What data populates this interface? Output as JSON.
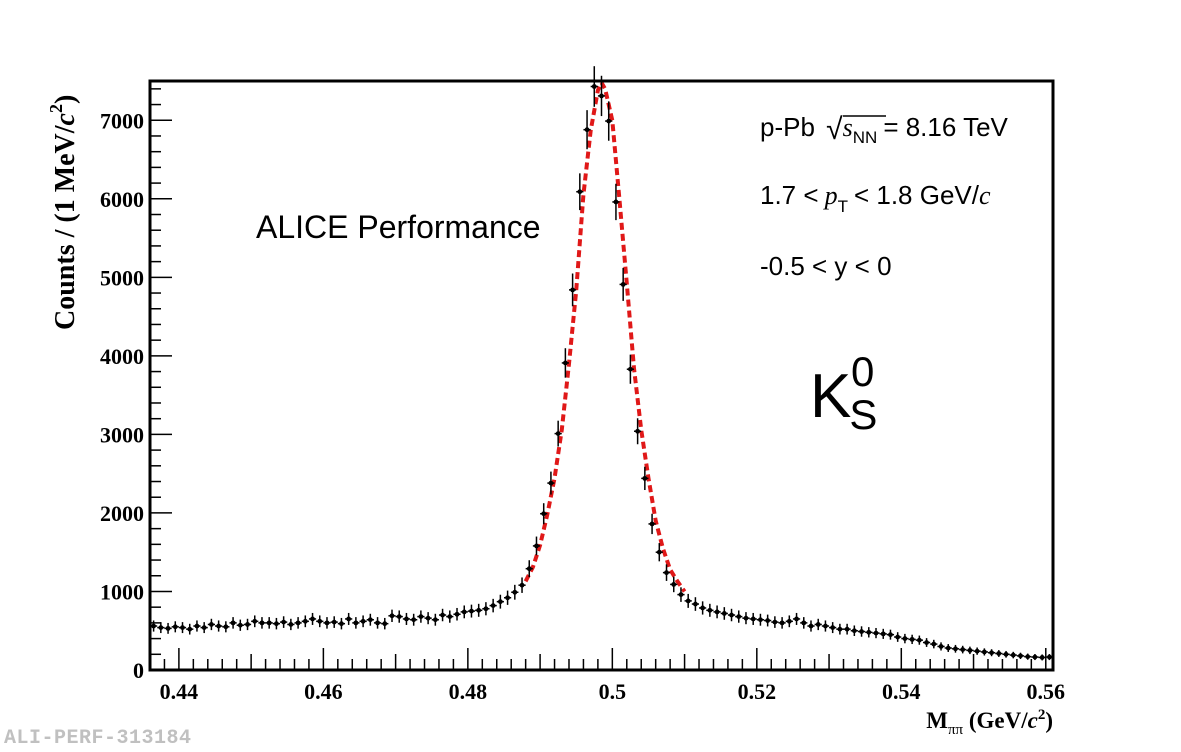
{
  "colors": {
    "data": "#000000",
    "fit": "#e01818",
    "frame": "#000000",
    "watermark": "#c0c0c0"
  },
  "footer_id": "ALI-PERF-313184",
  "chart_data": {
    "type": "scatter",
    "title": "",
    "xlabel": {
      "main": "M",
      "sub": "ππ",
      "units_pre": " (GeV/",
      "units_c": "c",
      "units_sup": "2",
      "units_post": ")"
    },
    "ylabel": {
      "main": "Counts / (1 MeV/",
      "c": "c",
      "sup": "2",
      "post": ")"
    },
    "xlim": [
      0.436,
      0.561
    ],
    "ylim": [
      0,
      7500
    ],
    "x_ticks": [
      0.44,
      0.46,
      0.48,
      0.5,
      0.52,
      0.54,
      0.56
    ],
    "x_tick_labels": [
      "0.44",
      "0.46",
      "0.48",
      "0.5",
      "0.52",
      "0.54",
      "0.56"
    ],
    "y_ticks": [
      0,
      1000,
      2000,
      3000,
      4000,
      5000,
      6000,
      7000
    ],
    "y_tick_labels": [
      "0",
      "1000",
      "2000",
      "3000",
      "4000",
      "5000",
      "6000",
      "7000"
    ],
    "annotations": {
      "performance": "ALICE Performance",
      "system_prefix": "p-Pb",
      "sqrt_s": "s",
      "sqrt_sub": "NN",
      "energy": "= 8.16 TeV",
      "pt_lo": "1.7 <",
      "pt_p": "p",
      "pt_sub": "T",
      "pt_hi": "< 1.8 GeV/",
      "pt_c": "c",
      "rapidity": "-0.5 < y < 0",
      "particle": "K",
      "particle_sub": "S",
      "particle_sup": "0"
    },
    "series": [
      {
        "name": "data",
        "x": [
          0.4365,
          0.4375,
          0.4385,
          0.4395,
          0.4405,
          0.4415,
          0.4425,
          0.4435,
          0.4445,
          0.4455,
          0.4465,
          0.4475,
          0.4485,
          0.4495,
          0.4505,
          0.4515,
          0.4525,
          0.4535,
          0.4545,
          0.4555,
          0.4565,
          0.4575,
          0.4585,
          0.4595,
          0.4605,
          0.4615,
          0.4625,
          0.4635,
          0.4645,
          0.4655,
          0.4665,
          0.4675,
          0.4685,
          0.4695,
          0.4705,
          0.4715,
          0.4725,
          0.4735,
          0.4745,
          0.4755,
          0.4765,
          0.4775,
          0.4785,
          0.4795,
          0.4805,
          0.4815,
          0.4825,
          0.4835,
          0.4845,
          0.4855,
          0.4865,
          0.4875,
          0.4885,
          0.4895,
          0.4905,
          0.4915,
          0.4925,
          0.4935,
          0.4945,
          0.4955,
          0.4965,
          0.4975,
          0.4985,
          0.4995,
          0.5005,
          0.5015,
          0.5025,
          0.5035,
          0.5045,
          0.5055,
          0.5065,
          0.5075,
          0.5085,
          0.5095,
          0.5105,
          0.5115,
          0.5125,
          0.5135,
          0.5145,
          0.5155,
          0.5165,
          0.5175,
          0.5185,
          0.5195,
          0.5205,
          0.5215,
          0.5225,
          0.5235,
          0.5245,
          0.5255,
          0.5265,
          0.5275,
          0.5285,
          0.5295,
          0.5305,
          0.5315,
          0.5325,
          0.5335,
          0.5345,
          0.5355,
          0.5365,
          0.5375,
          0.5385,
          0.5395,
          0.5405,
          0.5415,
          0.5425,
          0.5435,
          0.5445,
          0.5455,
          0.5465,
          0.5475,
          0.5485,
          0.5495,
          0.5505,
          0.5515,
          0.5525,
          0.5535,
          0.5545,
          0.5555,
          0.5565,
          0.5575,
          0.5585,
          0.5595,
          0.5605
        ],
        "y": [
          560,
          540,
          530,
          550,
          540,
          520,
          560,
          540,
          580,
          560,
          550,
          600,
          570,
          580,
          620,
          600,
          600,
          590,
          610,
          580,
          600,
          620,
          650,
          620,
          600,
          610,
          590,
          650,
          600,
          620,
          640,
          600,
          590,
          690,
          680,
          650,
          640,
          680,
          660,
          640,
          700,
          680,
          710,
          740,
          750,
          760,
          780,
          820,
          870,
          920,
          990,
          1080,
          1290,
          1580,
          1990,
          2380,
          3010,
          3910,
          4840,
          6090,
          6880,
          7430,
          7310,
          6990,
          5960,
          4910,
          3830,
          3040,
          2440,
          1860,
          1500,
          1240,
          1090,
          960,
          880,
          840,
          790,
          760,
          740,
          720,
          700,
          680,
          660,
          650,
          640,
          630,
          610,
          600,
          620,
          650,
          600,
          560,
          580,
          560,
          540,
          520,
          520,
          500,
          490,
          480,
          470,
          460,
          450,
          420,
          400,
          390,
          380,
          350,
          330,
          300,
          280,
          270,
          260,
          250,
          240,
          230,
          220,
          210,
          200,
          190,
          180,
          170,
          165,
          160,
          165
        ]
      },
      {
        "name": "fit",
        "style": "dashed",
        "x": [
          0.488,
          0.489,
          0.49,
          0.491,
          0.492,
          0.493,
          0.494,
          0.495,
          0.496,
          0.497,
          0.498,
          0.4985,
          0.499,
          0.5,
          0.501,
          0.502,
          0.503,
          0.504,
          0.505,
          0.506,
          0.507,
          0.508,
          0.509,
          0.51
        ],
        "y": [
          1130,
          1310,
          1590,
          1980,
          2440,
          3060,
          3900,
          4830,
          6050,
          6870,
          7380,
          7480,
          7400,
          7000,
          5970,
          4920,
          3840,
          3060,
          2440,
          1900,
          1550,
          1280,
          1130,
          1000
        ]
      }
    ]
  }
}
